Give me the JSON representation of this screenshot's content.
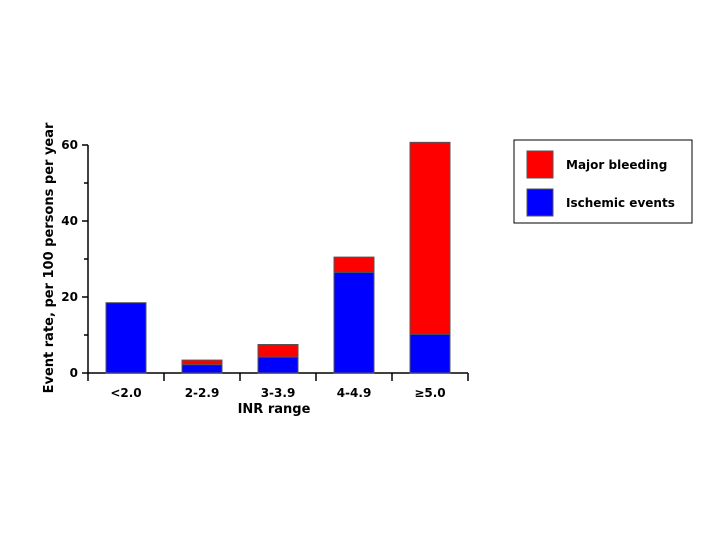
{
  "chart_data": {
    "type": "bar",
    "stacked": true,
    "xlabel": "INR range",
    "ylabel": "Event rate, per 100 persons per year",
    "ylim": [
      0,
      60
    ],
    "yticks": [
      0,
      20,
      40,
      60
    ],
    "categories": [
      "<2.0",
      "2-2.9",
      "3-3.9",
      "4-4.9",
      "≥5.0"
    ],
    "series": [
      {
        "name": "Ischemic events",
        "color": "#0000ff",
        "values": [
          18.5,
          2.2,
          4.2,
          26.5,
          10.2
        ]
      },
      {
        "name": "Major bleeding",
        "color": "#ff0000",
        "values": [
          0,
          1.2,
          3.3,
          4.0,
          50.5
        ]
      }
    ],
    "legend_position": "right",
    "grid": false
  }
}
